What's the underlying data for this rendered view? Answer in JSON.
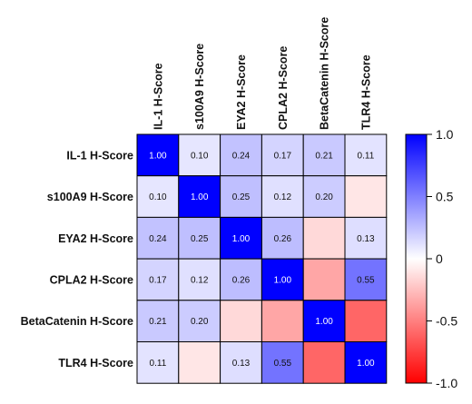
{
  "chart_data": {
    "type": "heatmap",
    "title": "",
    "rows": [
      "IL-1 H-Score",
      "s100A9 H-Score",
      "EYA2 H-Score",
      "CPLA2 H-Score",
      "BetaCatenin H-Score",
      "TLR4 H-Score"
    ],
    "columns": [
      "IL-1 H-Score",
      "s100A9 H-Score",
      "EYA2 H-Score",
      "CPLA2 H-Score",
      "BetaCatenin H-Score",
      "TLR4 H-Score"
    ],
    "values": [
      [
        1.0,
        0.1,
        0.24,
        0.17,
        0.21,
        0.11
      ],
      [
        0.1,
        1.0,
        0.25,
        0.12,
        0.2,
        -0.1
      ],
      [
        0.24,
        0.25,
        1.0,
        0.26,
        -0.15,
        0.13
      ],
      [
        0.17,
        0.12,
        0.26,
        1.0,
        -0.35,
        0.55
      ],
      [
        0.21,
        0.2,
        -0.15,
        -0.35,
        1.0,
        -0.6
      ],
      [
        0.11,
        -0.1,
        0.13,
        0.55,
        -0.6,
        1.0
      ]
    ],
    "cell_labels": [
      [
        "1.00",
        "0.10",
        "0.24",
        "0.17",
        "0.21",
        "0.11"
      ],
      [
        "0.10",
        "1.00",
        "0.25",
        "0.12",
        "0.20",
        ""
      ],
      [
        "0.24",
        "0.25",
        "1.00",
        "0.26",
        "",
        "0.13"
      ],
      [
        "0.17",
        "0.12",
        "0.26",
        "1.00",
        "",
        "0.55"
      ],
      [
        "0.21",
        "0.20",
        "",
        "",
        "1.00",
        ""
      ],
      [
        "0.11",
        "",
        "0.13",
        "0.55",
        "",
        "1.00"
      ]
    ],
    "color_scale": {
      "min": -1.0,
      "max": 1.0,
      "min_color": "#ff0000",
      "mid_color": "#ffffff",
      "max_color": "#0000ff",
      "ticks": [
        1.0,
        0.5,
        0,
        -0.5,
        -1.0
      ],
      "tick_labels": [
        "1.0",
        "0.5",
        "0",
        "-0.5",
        "-1.0"
      ]
    },
    "grid": true,
    "legend": "right"
  }
}
